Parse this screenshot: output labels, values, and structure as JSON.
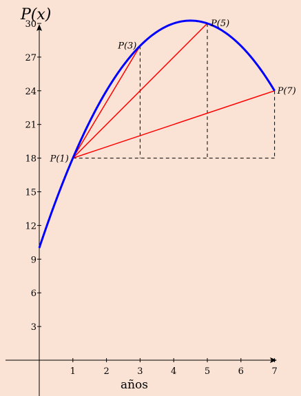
{
  "chart_data": {
    "type": "line",
    "title": "",
    "xlabel": "años",
    "ylabel": "P(x)",
    "xlim": [
      0,
      7
    ],
    "ylim": [
      0,
      30
    ],
    "x_ticks": [
      1,
      2,
      3,
      4,
      5,
      6,
      7
    ],
    "y_ticks": [
      3,
      6,
      9,
      12,
      15,
      18,
      21,
      24,
      27,
      30
    ],
    "grid": false,
    "series": [
      {
        "function": "P(x) = -x^2 + 9x + 10",
        "x": [
          0,
          0.5,
          1,
          1.5,
          2,
          2.5,
          3,
          3.5,
          4,
          4.5,
          5,
          5.5,
          6,
          6.5,
          7
        ],
        "y": [
          10,
          14.25,
          18,
          21.25,
          24,
          26.25,
          28,
          29.25,
          30,
          30.25,
          30,
          29.25,
          28,
          26.25,
          24
        ],
        "color": "#0000ff"
      }
    ],
    "points": [
      {
        "label": "P(1)",
        "x": 1,
        "y": 18
      },
      {
        "label": "P(3)",
        "x": 3,
        "y": 28
      },
      {
        "label": "P(5)",
        "x": 5,
        "y": 30
      },
      {
        "label": "P(7)",
        "x": 7,
        "y": 24
      }
    ],
    "secants": [
      {
        "from": 1,
        "to": 3,
        "color": "#ff0000"
      },
      {
        "from": 1,
        "to": 5,
        "color": "#ff0000"
      },
      {
        "from": 1,
        "to": 7,
        "color": "#ff0000"
      }
    ],
    "dashed_guides": {
      "horizontal_from_x": 1,
      "horizontal_y": 18,
      "horizontal_to_x": 7,
      "vertical_at_x": [
        3,
        5,
        7
      ],
      "vertical_from_y": 18
    }
  }
}
